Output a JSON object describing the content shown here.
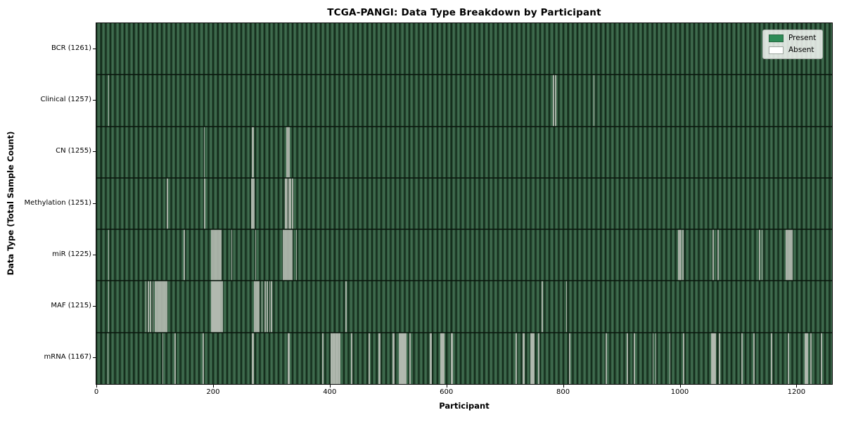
{
  "chart_data": {
    "type": "heatmap",
    "title": "TCGA-PANGI: Data Type Breakdown by Participant",
    "xlabel": "Participant",
    "ylabel": "Data Type (Total Sample Count)",
    "grid": false,
    "legend_position": "upper right",
    "legend": [
      {
        "label": "Present",
        "color": "#2e8b57"
      },
      {
        "label": "Absent",
        "color": "#ffffff"
      }
    ],
    "x_axis": {
      "max": 1261,
      "ticks": [
        0,
        200,
        400,
        600,
        800,
        1000,
        1200
      ],
      "tick_labels": [
        "0",
        "200",
        "400",
        "600",
        "800",
        "1000",
        "1200"
      ]
    },
    "rows": [
      {
        "name": "BCR",
        "label": "BCR (1261)",
        "present_count": 1261,
        "absent": []
      },
      {
        "name": "Clinical",
        "label": "Clinical (1257)",
        "present_count": 1257,
        "absent": [
          20,
          783,
          786,
          852
        ]
      },
      {
        "name": "CN",
        "label": "CN (1255)",
        "present_count": 1255,
        "absent": [
          184,
          266,
          268,
          326,
          328,
          330
        ]
      },
      {
        "name": "Methylation",
        "label": "Methylation (1251)",
        "present_count": 1251,
        "absent": [
          121,
          185,
          265,
          267,
          269,
          323,
          326,
          329,
          332,
          335
        ]
      },
      {
        "name": "miR",
        "label": "miR (1225)",
        "present_count": 1225,
        "absent": [
          20,
          150,
          196,
          198,
          200,
          202,
          204,
          206,
          208,
          210,
          212,
          231,
          272,
          320,
          322,
          324,
          326,
          328,
          330,
          332,
          334,
          342,
          997,
          999,
          1001,
          1004,
          1056,
          1065,
          1136,
          1140,
          1182,
          1184,
          1186,
          1188,
          1190,
          1192
        ]
      },
      {
        "name": "MAF",
        "label": "MAF (1215)",
        "present_count": 1215,
        "absent": [
          20,
          84,
          88,
          92,
          96,
          100,
          102,
          104,
          106,
          108,
          110,
          112,
          114,
          116,
          118,
          120,
          197,
          198,
          199,
          200,
          201,
          202,
          203,
          204,
          205,
          206,
          207,
          208,
          209,
          210,
          211,
          213,
          215,
          270,
          272,
          274,
          276,
          278,
          283,
          288,
          292,
          296,
          299,
          427,
          763,
          805
        ]
      },
      {
        "name": "mRNA",
        "label": "mRNA (1167)",
        "present_count": 1167,
        "absent": [
          19,
          113,
          134,
          182,
          267,
          268,
          328,
          329,
          387,
          401,
          402,
          403,
          405,
          406,
          407,
          408,
          410,
          411,
          412,
          413,
          415,
          416,
          436,
          437,
          466,
          467,
          484,
          485,
          508,
          509,
          518,
          519,
          520,
          521,
          522,
          523,
          524,
          525,
          526,
          527,
          528,
          529,
          530,
          536,
          537,
          572,
          573,
          589,
          590,
          591,
          592,
          593,
          594,
          595,
          608,
          609,
          718,
          719,
          731,
          732,
          744,
          745,
          746,
          747,
          748,
          749,
          757,
          810,
          873,
          909,
          921,
          953,
          958,
          982,
          1006,
          1054,
          1055,
          1056,
          1057,
          1058,
          1059,
          1060,
          1067,
          1106,
          1126,
          1156,
          1185,
          1214,
          1215,
          1216,
          1217,
          1218,
          1224,
          1242
        ]
      }
    ]
  }
}
